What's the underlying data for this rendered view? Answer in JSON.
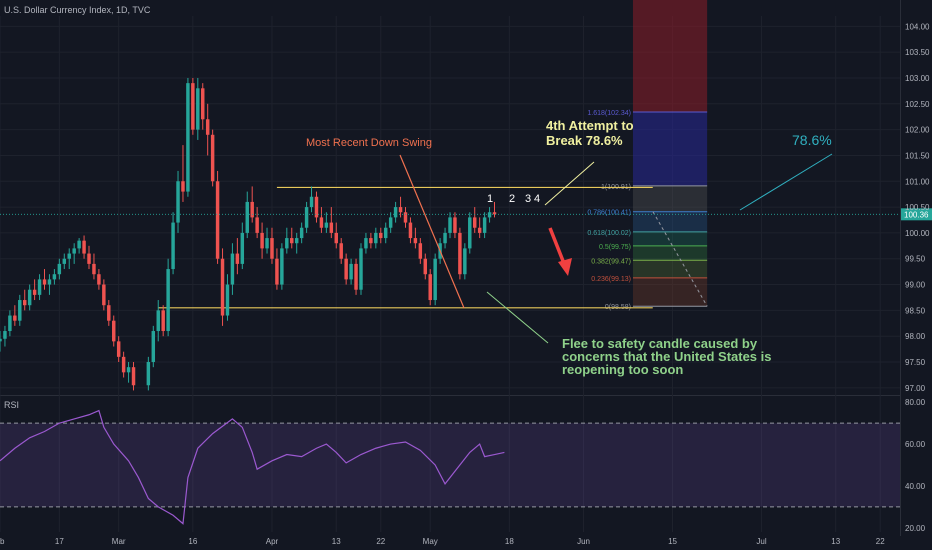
{
  "header": {
    "title": "U.S. Dollar Currency Index, 1D, TVC"
  },
  "rsi_panel": {
    "title": "RSI"
  },
  "colors": {
    "background": "#131722",
    "bull": "#26a69a",
    "bear": "#ef5350",
    "level_line": "#e8c95a",
    "annotation_green": "#8fd18a",
    "annotation_yellow": "#f0f0a0",
    "annotation_red": "#f0714f",
    "annotation_cyan": "#30b0c0",
    "rsi_line": "#9b59d0"
  },
  "chart_data": {
    "type": "candlestick",
    "y_ticks": [
      "104.00",
      "103.50",
      "103.00",
      "102.50",
      "102.00",
      "101.50",
      "101.00",
      "100.50",
      "100.00",
      "99.50",
      "99.00",
      "98.50",
      "98.00",
      "97.50",
      "97.00"
    ],
    "ylim": [
      96.9,
      104.2
    ],
    "x_ticks": [
      "eb",
      "17",
      "Mar",
      "16",
      "Apr",
      "13",
      "22",
      "May",
      "18",
      "Jun",
      "15",
      "Jul",
      "13",
      "22"
    ],
    "x_tick_days": [
      0,
      12,
      24,
      39,
      55,
      68,
      77,
      87,
      103,
      118,
      136,
      154,
      169,
      178
    ],
    "xlim": [
      0,
      182
    ],
    "last_price": "100.36",
    "candles": [
      {
        "d": 0,
        "o": 97.9,
        "h": 98.1,
        "l": 97.7,
        "c": 97.95
      },
      {
        "d": 1,
        "o": 97.95,
        "h": 98.2,
        "l": 97.8,
        "c": 98.1
      },
      {
        "d": 2,
        "o": 98.1,
        "h": 98.5,
        "l": 98.0,
        "c": 98.4
      },
      {
        "d": 3,
        "o": 98.4,
        "h": 98.6,
        "l": 98.2,
        "c": 98.3
      },
      {
        "d": 4,
        "o": 98.3,
        "h": 98.8,
        "l": 98.2,
        "c": 98.7
      },
      {
        "d": 5,
        "o": 98.7,
        "h": 98.9,
        "l": 98.5,
        "c": 98.6
      },
      {
        "d": 6,
        "o": 98.6,
        "h": 99.0,
        "l": 98.5,
        "c": 98.9
      },
      {
        "d": 7,
        "o": 98.9,
        "h": 99.1,
        "l": 98.7,
        "c": 98.8
      },
      {
        "d": 8,
        "o": 98.8,
        "h": 99.2,
        "l": 98.7,
        "c": 99.1
      },
      {
        "d": 9,
        "o": 99.1,
        "h": 99.3,
        "l": 98.9,
        "c": 99.0
      },
      {
        "d": 10,
        "o": 99.0,
        "h": 99.2,
        "l": 98.8,
        "c": 99.1
      },
      {
        "d": 11,
        "o": 99.1,
        "h": 99.3,
        "l": 99.0,
        "c": 99.2
      },
      {
        "d": 12,
        "o": 99.2,
        "h": 99.5,
        "l": 99.1,
        "c": 99.4
      },
      {
        "d": 13,
        "o": 99.4,
        "h": 99.6,
        "l": 99.3,
        "c": 99.5
      },
      {
        "d": 14,
        "o": 99.5,
        "h": 99.7,
        "l": 99.3,
        "c": 99.6
      },
      {
        "d": 15,
        "o": 99.6,
        "h": 99.8,
        "l": 99.4,
        "c": 99.7
      },
      {
        "d": 16,
        "o": 99.7,
        "h": 99.9,
        "l": 99.6,
        "c": 99.85
      },
      {
        "d": 17,
        "o": 99.85,
        "h": 99.95,
        "l": 99.5,
        "c": 99.6
      },
      {
        "d": 18,
        "o": 99.6,
        "h": 99.75,
        "l": 99.3,
        "c": 99.4
      },
      {
        "d": 19,
        "o": 99.4,
        "h": 99.6,
        "l": 99.1,
        "c": 99.2
      },
      {
        "d": 20,
        "o": 99.2,
        "h": 99.3,
        "l": 98.9,
        "c": 99.0
      },
      {
        "d": 21,
        "o": 99.0,
        "h": 99.1,
        "l": 98.5,
        "c": 98.6
      },
      {
        "d": 22,
        "o": 98.6,
        "h": 98.7,
        "l": 98.2,
        "c": 98.3
      },
      {
        "d": 23,
        "o": 98.3,
        "h": 98.4,
        "l": 97.8,
        "c": 97.9
      },
      {
        "d": 24,
        "o": 97.9,
        "h": 98.0,
        "l": 97.5,
        "c": 97.6
      },
      {
        "d": 25,
        "o": 97.6,
        "h": 97.7,
        "l": 97.2,
        "c": 97.3
      },
      {
        "d": 26,
        "o": 97.3,
        "h": 97.5,
        "l": 97.1,
        "c": 97.4
      },
      {
        "d": 27,
        "o": 97.4,
        "h": 97.5,
        "l": 96.95,
        "c": 97.05
      },
      {
        "d": 30,
        "o": 97.05,
        "h": 97.6,
        "l": 96.95,
        "c": 97.5
      },
      {
        "d": 31,
        "o": 97.5,
        "h": 98.2,
        "l": 97.4,
        "c": 98.1
      },
      {
        "d": 32,
        "o": 98.1,
        "h": 98.7,
        "l": 97.9,
        "c": 98.5
      },
      {
        "d": 33,
        "o": 98.5,
        "h": 98.6,
        "l": 98.0,
        "c": 98.1
      },
      {
        "d": 34,
        "o": 98.1,
        "h": 99.5,
        "l": 98.0,
        "c": 99.3
      },
      {
        "d": 35,
        "o": 99.3,
        "h": 100.4,
        "l": 99.2,
        "c": 100.2
      },
      {
        "d": 36,
        "o": 100.2,
        "h": 101.2,
        "l": 100.0,
        "c": 101.0
      },
      {
        "d": 37,
        "o": 101.0,
        "h": 101.7,
        "l": 100.6,
        "c": 100.8
      },
      {
        "d": 38,
        "o": 100.8,
        "h": 103.0,
        "l": 100.7,
        "c": 102.9
      },
      {
        "d": 39,
        "o": 102.9,
        "h": 103.0,
        "l": 101.9,
        "c": 102.0
      },
      {
        "d": 40,
        "o": 102.0,
        "h": 103.0,
        "l": 101.8,
        "c": 102.8
      },
      {
        "d": 41,
        "o": 102.8,
        "h": 102.9,
        "l": 102.0,
        "c": 102.2
      },
      {
        "d": 42,
        "o": 102.2,
        "h": 102.5,
        "l": 101.5,
        "c": 101.9
      },
      {
        "d": 43,
        "o": 101.9,
        "h": 102.0,
        "l": 100.9,
        "c": 101.0
      },
      {
        "d": 44,
        "o": 101.0,
        "h": 101.2,
        "l": 99.4,
        "c": 99.5
      },
      {
        "d": 45,
        "o": 99.5,
        "h": 99.7,
        "l": 98.2,
        "c": 98.4
      },
      {
        "d": 46,
        "o": 98.4,
        "h": 99.2,
        "l": 98.3,
        "c": 99.0
      },
      {
        "d": 47,
        "o": 99.0,
        "h": 99.8,
        "l": 98.8,
        "c": 99.6
      },
      {
        "d": 48,
        "o": 99.6,
        "h": 99.9,
        "l": 99.2,
        "c": 99.4
      },
      {
        "d": 49,
        "o": 99.4,
        "h": 100.2,
        "l": 99.3,
        "c": 100.0
      },
      {
        "d": 50,
        "o": 100.0,
        "h": 100.8,
        "l": 99.9,
        "c": 100.6
      },
      {
        "d": 51,
        "o": 100.6,
        "h": 100.9,
        "l": 100.2,
        "c": 100.3
      },
      {
        "d": 52,
        "o": 100.3,
        "h": 100.5,
        "l": 99.9,
        "c": 100.0
      },
      {
        "d": 53,
        "o": 100.0,
        "h": 100.2,
        "l": 99.5,
        "c": 99.7
      },
      {
        "d": 54,
        "o": 99.7,
        "h": 100.1,
        "l": 99.6,
        "c": 99.9
      },
      {
        "d": 55,
        "o": 99.9,
        "h": 100.1,
        "l": 99.4,
        "c": 99.5
      },
      {
        "d": 56,
        "o": 99.5,
        "h": 99.7,
        "l": 98.9,
        "c": 99.0
      },
      {
        "d": 57,
        "o": 99.0,
        "h": 99.8,
        "l": 98.9,
        "c": 99.7
      },
      {
        "d": 58,
        "o": 99.7,
        "h": 100.1,
        "l": 99.6,
        "c": 99.9
      },
      {
        "d": 59,
        "o": 99.9,
        "h": 100.1,
        "l": 99.7,
        "c": 99.8
      },
      {
        "d": 60,
        "o": 99.8,
        "h": 100.0,
        "l": 99.6,
        "c": 99.9
      },
      {
        "d": 61,
        "o": 99.9,
        "h": 100.2,
        "l": 99.8,
        "c": 100.1
      },
      {
        "d": 62,
        "o": 100.1,
        "h": 100.6,
        "l": 100.0,
        "c": 100.5
      },
      {
        "d": 63,
        "o": 100.5,
        "h": 100.9,
        "l": 100.4,
        "c": 100.7
      },
      {
        "d": 64,
        "o": 100.7,
        "h": 100.8,
        "l": 100.2,
        "c": 100.3
      },
      {
        "d": 65,
        "o": 100.3,
        "h": 100.5,
        "l": 100.0,
        "c": 100.1
      },
      {
        "d": 66,
        "o": 100.1,
        "h": 100.4,
        "l": 100.0,
        "c": 100.2
      },
      {
        "d": 67,
        "o": 100.2,
        "h": 100.5,
        "l": 99.9,
        "c": 100.0
      },
      {
        "d": 68,
        "o": 100.0,
        "h": 100.2,
        "l": 99.7,
        "c": 99.8
      },
      {
        "d": 69,
        "o": 99.8,
        "h": 99.9,
        "l": 99.4,
        "c": 99.5
      },
      {
        "d": 70,
        "o": 99.5,
        "h": 99.6,
        "l": 99.0,
        "c": 99.1
      },
      {
        "d": 71,
        "o": 99.1,
        "h": 99.5,
        "l": 99.0,
        "c": 99.4
      },
      {
        "d": 72,
        "o": 99.4,
        "h": 99.5,
        "l": 98.8,
        "c": 98.9
      },
      {
        "d": 73,
        "o": 98.9,
        "h": 99.8,
        "l": 98.8,
        "c": 99.7
      },
      {
        "d": 74,
        "o": 99.7,
        "h": 100.0,
        "l": 99.6,
        "c": 99.9
      },
      {
        "d": 75,
        "o": 99.9,
        "h": 100.0,
        "l": 99.7,
        "c": 99.8
      },
      {
        "d": 76,
        "o": 99.8,
        "h": 100.1,
        "l": 99.7,
        "c": 100.0
      },
      {
        "d": 77,
        "o": 100.0,
        "h": 100.1,
        "l": 99.8,
        "c": 99.9
      },
      {
        "d": 78,
        "o": 99.9,
        "h": 100.2,
        "l": 99.8,
        "c": 100.1
      },
      {
        "d": 79,
        "o": 100.1,
        "h": 100.4,
        "l": 100.0,
        "c": 100.3
      },
      {
        "d": 80,
        "o": 100.3,
        "h": 100.6,
        "l": 100.2,
        "c": 100.5
      },
      {
        "d": 81,
        "o": 100.5,
        "h": 100.7,
        "l": 100.3,
        "c": 100.4
      },
      {
        "d": 82,
        "o": 100.4,
        "h": 100.5,
        "l": 100.1,
        "c": 100.2
      },
      {
        "d": 83,
        "o": 100.2,
        "h": 100.3,
        "l": 99.8,
        "c": 99.9
      },
      {
        "d": 84,
        "o": 99.9,
        "h": 100.1,
        "l": 99.7,
        "c": 99.8
      },
      {
        "d": 85,
        "o": 99.8,
        "h": 99.9,
        "l": 99.4,
        "c": 99.5
      },
      {
        "d": 86,
        "o": 99.5,
        "h": 99.6,
        "l": 99.1,
        "c": 99.2
      },
      {
        "d": 87,
        "o": 99.2,
        "h": 99.3,
        "l": 98.6,
        "c": 98.7
      },
      {
        "d": 88,
        "o": 98.7,
        "h": 99.6,
        "l": 98.6,
        "c": 99.5
      },
      {
        "d": 89,
        "o": 99.5,
        "h": 99.9,
        "l": 99.4,
        "c": 99.8
      },
      {
        "d": 90,
        "o": 99.8,
        "h": 100.1,
        "l": 99.7,
        "c": 100.0
      },
      {
        "d": 91,
        "o": 100.0,
        "h": 100.4,
        "l": 99.9,
        "c": 100.3
      },
      {
        "d": 92,
        "o": 100.3,
        "h": 100.4,
        "l": 99.9,
        "c": 100.0
      },
      {
        "d": 93,
        "o": 100.0,
        "h": 100.1,
        "l": 99.1,
        "c": 99.2
      },
      {
        "d": 94,
        "o": 99.2,
        "h": 99.8,
        "l": 99.1,
        "c": 99.7
      },
      {
        "d": 95,
        "o": 99.7,
        "h": 100.4,
        "l": 99.6,
        "c": 100.3
      },
      {
        "d": 96,
        "o": 100.3,
        "h": 100.5,
        "l": 100.0,
        "c": 100.1
      },
      {
        "d": 97,
        "o": 100.1,
        "h": 100.3,
        "l": 99.9,
        "c": 100.0
      },
      {
        "d": 98,
        "o": 100.0,
        "h": 100.4,
        "l": 99.9,
        "c": 100.3
      },
      {
        "d": 99,
        "o": 100.3,
        "h": 100.5,
        "l": 100.2,
        "c": 100.4
      },
      {
        "d": 100,
        "o": 100.4,
        "h": 100.6,
        "l": 100.3,
        "c": 100.36
      }
    ],
    "levels": [
      {
        "name": "resistance",
        "y": 100.88,
        "d0": 56,
        "d1": 132
      },
      {
        "name": "support",
        "y": 98.55,
        "d0": 32,
        "d1": 132
      }
    ],
    "fib": {
      "d0": 128,
      "d1": 143,
      "levels": [
        {
          "ratio": "1.618",
          "label": "1.618(102.34)",
          "y": 102.34
        },
        {
          "ratio": "1",
          "label": "1(100.91)",
          "y": 100.91
        },
        {
          "ratio": "0.786",
          "label": "0.786(100.41)",
          "y": 100.41
        },
        {
          "ratio": "0.618",
          "label": "0.618(100.02)",
          "y": 100.02
        },
        {
          "ratio": "0.5",
          "label": "0.5(99.75)",
          "y": 99.75
        },
        {
          "ratio": "0.382",
          "label": "0.382(99.47)",
          "y": 99.47
        },
        {
          "ratio": "0.236",
          "label": "0.236(99.13)",
          "y": 99.13
        },
        {
          "ratio": "0",
          "label": "0(98.58)",
          "y": 98.58
        }
      ]
    },
    "annotations": {
      "down_swing": "Most Recent Down Swing",
      "attempt": "4th Attempt to Break 78.6%",
      "attempt_line1": "4th Attempt to",
      "attempt_line2": "Break 78.6%",
      "fib_callout": "78.6%",
      "flee_line1": "Flee to safety candle caused by",
      "flee_line2": "concerns that the United States is",
      "flee_line3": "reopening too soon",
      "attempt_numbers": [
        "1",
        "2",
        "3",
        "4"
      ]
    },
    "rsi": {
      "y_ticks": [
        "80.00",
        "60.00",
        "40.00",
        "20.00"
      ],
      "ylim": [
        18,
        82
      ],
      "overbought": 70,
      "oversold": 30,
      "values": [
        [
          0,
          52
        ],
        [
          3,
          58
        ],
        [
          6,
          63
        ],
        [
          9,
          66
        ],
        [
          12,
          70
        ],
        [
          15,
          72
        ],
        [
          18,
          74
        ],
        [
          20,
          76
        ],
        [
          21,
          68
        ],
        [
          23,
          60
        ],
        [
          26,
          52
        ],
        [
          28,
          44
        ],
        [
          30,
          34
        ],
        [
          32,
          30
        ],
        [
          35,
          26
        ],
        [
          37,
          22
        ],
        [
          38,
          44
        ],
        [
          40,
          58
        ],
        [
          43,
          65
        ],
        [
          47,
          72
        ],
        [
          49,
          68
        ],
        [
          51,
          56
        ],
        [
          52,
          48
        ],
        [
          55,
          52
        ],
        [
          58,
          55
        ],
        [
          61,
          54
        ],
        [
          64,
          58
        ],
        [
          66,
          60
        ],
        [
          68,
          56
        ],
        [
          70,
          51
        ],
        [
          73,
          55
        ],
        [
          76,
          58
        ],
        [
          79,
          60
        ],
        [
          82,
          61
        ],
        [
          85,
          57
        ],
        [
          88,
          50
        ],
        [
          90,
          41
        ],
        [
          92,
          47
        ],
        [
          95,
          56
        ],
        [
          97,
          60
        ],
        [
          98,
          54
        ],
        [
          100,
          55
        ],
        [
          102,
          56
        ]
      ]
    }
  }
}
